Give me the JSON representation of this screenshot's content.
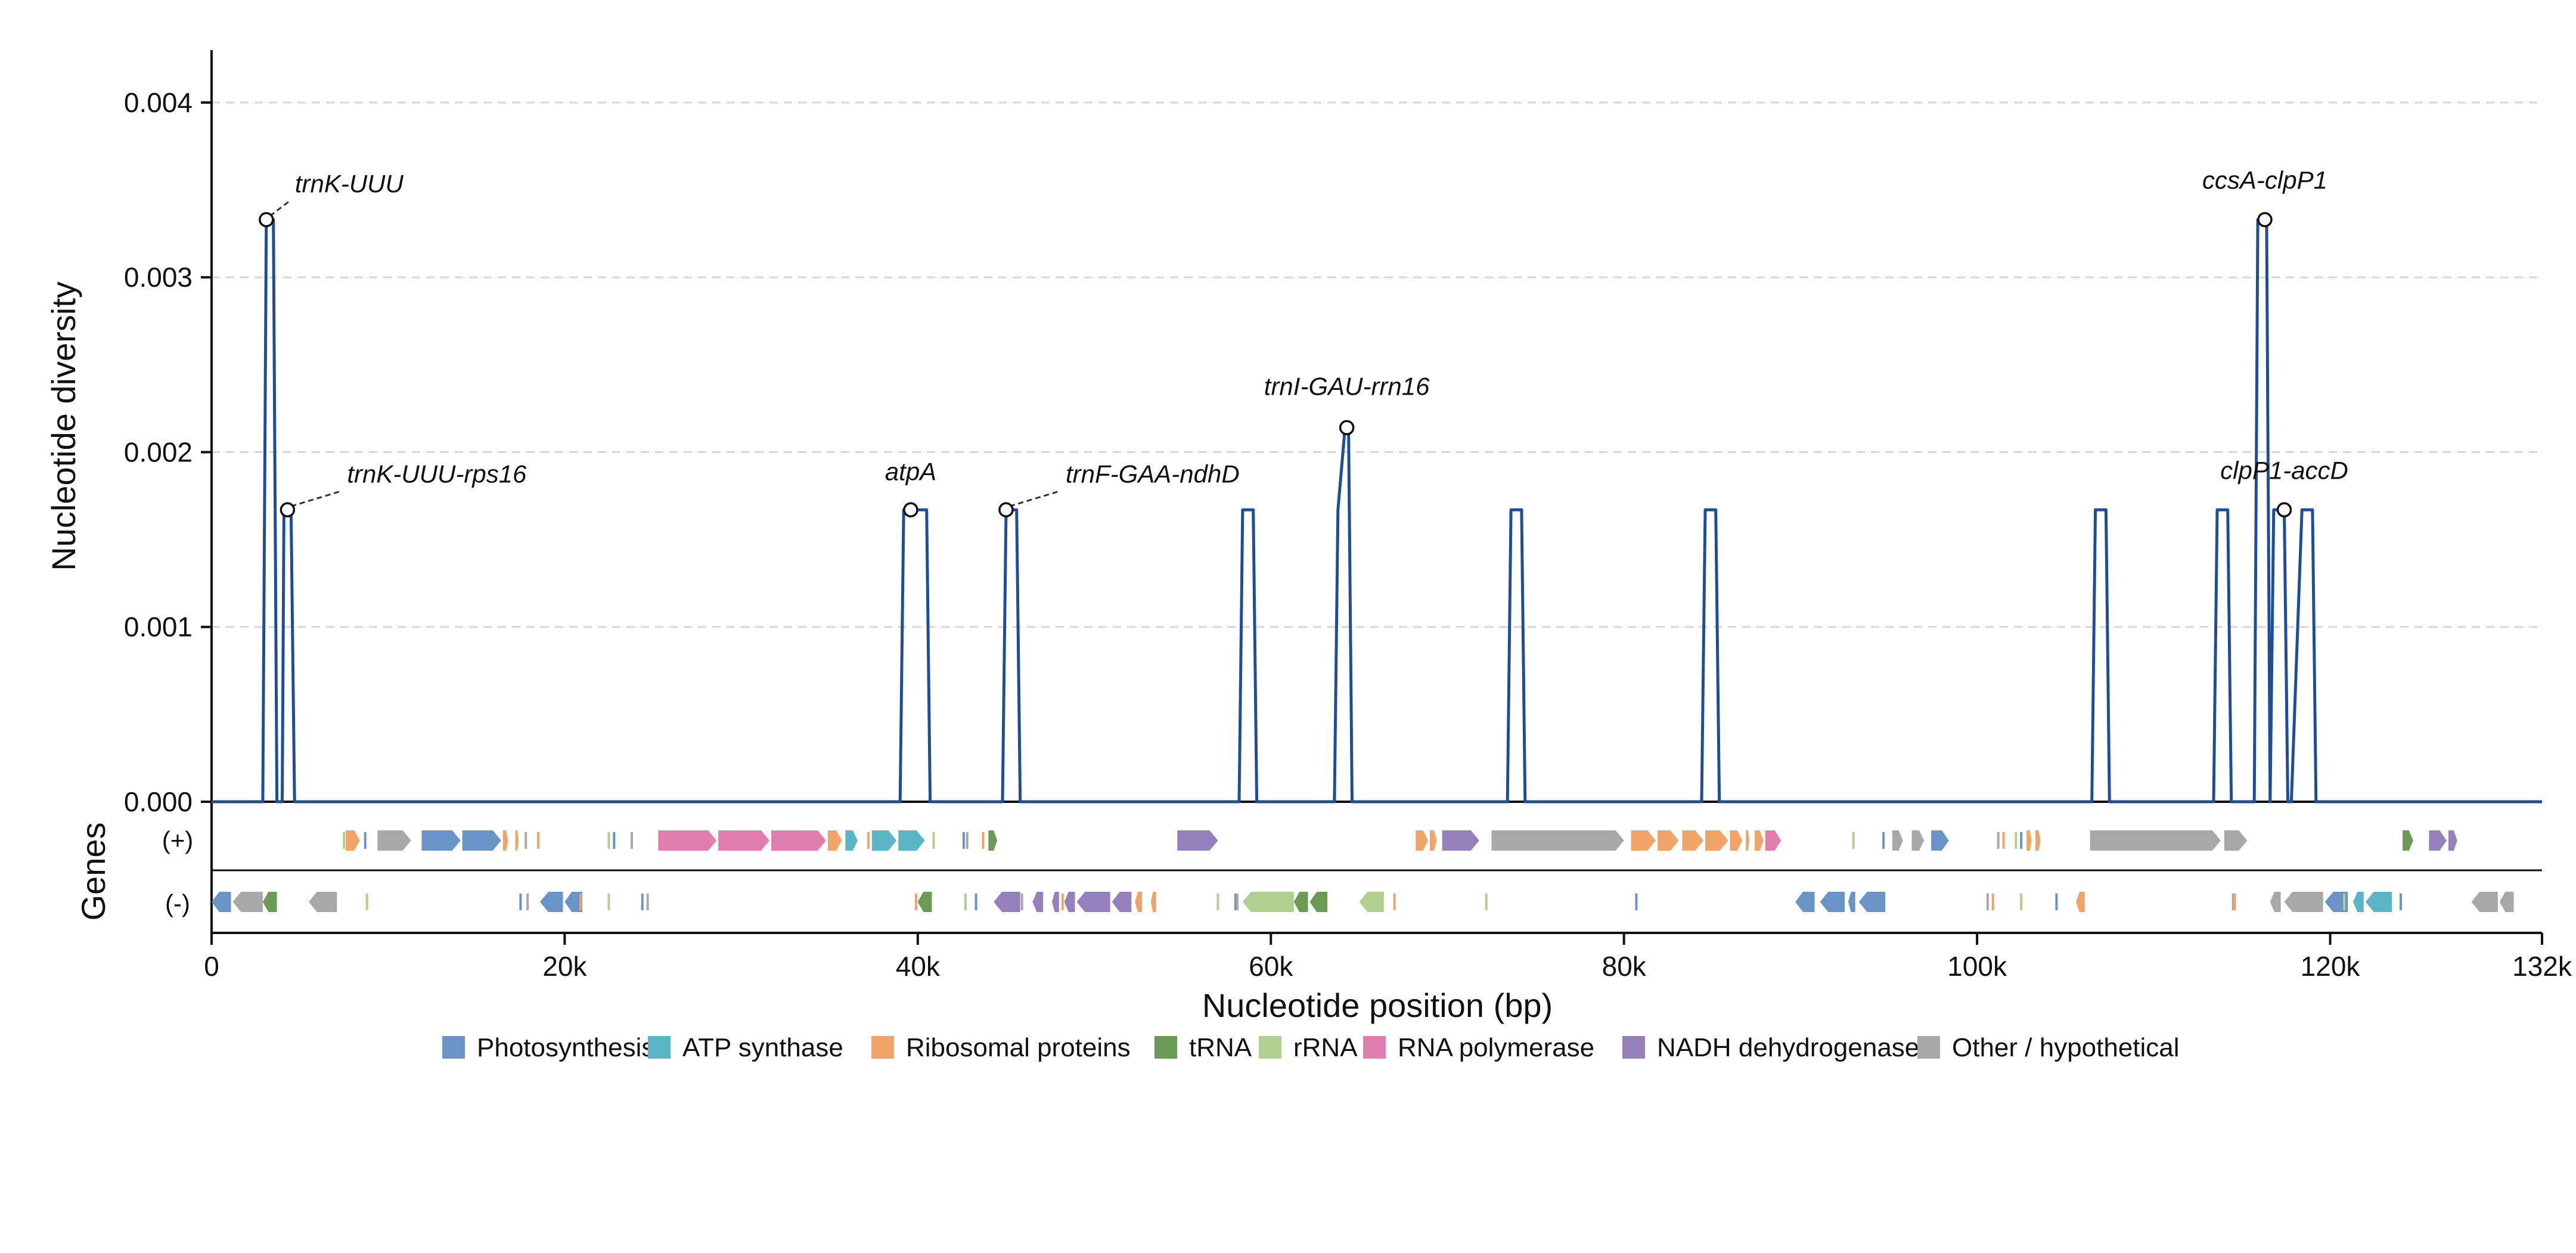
{
  "chart_data": {
    "type": "line",
    "ylabel": "Nucleotide diversity",
    "xlabel": "Nucleotide position (bp)",
    "xlim": [
      0,
      132000
    ],
    "ylim": [
      0,
      0.0043
    ],
    "y_ticks": [
      "0.000",
      "0.001",
      "0.002",
      "0.003",
      "0.004"
    ],
    "y_tick_values": [
      0,
      0.001,
      0.002,
      0.003,
      0.004
    ],
    "x_ticks": [
      "0",
      "20k",
      "40k",
      "60k",
      "80k",
      "100k",
      "120k",
      "132k"
    ],
    "x_tick_values": [
      0,
      20000,
      40000,
      60000,
      80000,
      100000,
      120000,
      132000
    ],
    "grid": "horizontal dashed",
    "series": [
      {
        "color": "#1f4e96",
        "x": [
          0,
          2900,
          3100,
          3300,
          3500,
          3700,
          3900,
          4000,
          4100,
          4300,
          4500,
          4700,
          4900,
          5000,
          5100,
          39000,
          39200,
          39400,
          40300,
          40500,
          40700,
          44800,
          45000,
          45400,
          45600,
          45800,
          58200,
          58400,
          58800,
          59000,
          59200,
          63600,
          63800,
          64200,
          64400,
          64600,
          73400,
          73600,
          74000,
          74200,
          74400,
          84400,
          84600,
          85000,
          85200,
          85400,
          106500,
          106700,
          107100,
          107300,
          107500,
          113400,
          113600,
          114000,
          114200,
          114400,
          115700,
          115900,
          116200,
          116400,
          116600,
          116800,
          117000,
          117400,
          117600,
          117800,
          118400,
          118600,
          119000,
          119200,
          119400,
          132000
        ],
        "y": [
          0,
          0,
          0.00333,
          0.00333,
          0.00333,
          0,
          0,
          0,
          0.00167,
          0.00167,
          0.00167,
          0,
          0,
          0,
          0,
          0,
          0.00167,
          0.00167,
          0.00167,
          0.00167,
          0,
          0,
          0.00167,
          0.00167,
          0.00167,
          0,
          0,
          0.00167,
          0.00167,
          0.00167,
          0,
          0,
          0.00167,
          0.00214,
          0.00214,
          0,
          0,
          0.00167,
          0.00167,
          0.00167,
          0,
          0,
          0.00167,
          0.00167,
          0.00167,
          0,
          0,
          0.00167,
          0.00167,
          0.00167,
          0,
          0,
          0.00167,
          0.00167,
          0.00167,
          0,
          0,
          0.00333,
          0.00333,
          0.00333,
          0,
          0.00167,
          0.00167,
          0.00167,
          0,
          0,
          0.00167,
          0.00167,
          0.00167,
          0,
          0,
          0
        ]
      }
    ],
    "peaks": [
      {
        "label": "trnK-UUU",
        "x": 3100,
        "y": 0.00333,
        "leader": true
      },
      {
        "label": "trnK-UUU-rps16",
        "x": 4300,
        "y": 0.00167,
        "leader": true
      },
      {
        "label": "atpA",
        "x": 39600,
        "y": 0.00167,
        "leader": false
      },
      {
        "label": "trnF-GAA-ndhD",
        "x": 45000,
        "y": 0.00167,
        "leader": true
      },
      {
        "label": "trnI-GAU-rrn16",
        "x": 64300,
        "y": 0.00214,
        "leader": false
      },
      {
        "label": "ccsA-clpP1",
        "x": 116300,
        "y": 0.00333,
        "leader": false
      },
      {
        "label": "clpP1-accD",
        "x": 117400,
        "y": 0.00167,
        "leader": false
      }
    ],
    "gene_track": {
      "title": "Genes",
      "strand_labels": [
        "(+)",
        "(-)"
      ],
      "plus": [
        {
          "start": 7600,
          "end": 8400,
          "cat": "ribosomal"
        },
        {
          "start": 9400,
          "end": 11300,
          "cat": "other"
        },
        {
          "start": 11900,
          "end": 14100,
          "cat": "photo"
        },
        {
          "start": 14200,
          "end": 16400,
          "cat": "photo"
        },
        {
          "start": 16500,
          "end": 16800,
          "cat": "ribosomal"
        },
        {
          "start": 17200,
          "end": 17400,
          "cat": "ribosomal"
        },
        {
          "start": 25300,
          "end": 28600,
          "cat": "rnapol"
        },
        {
          "start": 28700,
          "end": 31600,
          "cat": "rnapol"
        },
        {
          "start": 31700,
          "end": 34800,
          "cat": "rnapol"
        },
        {
          "start": 34900,
          "end": 35700,
          "cat": "ribosomal"
        },
        {
          "start": 35900,
          "end": 36600,
          "cat": "atp"
        },
        {
          "start": 37400,
          "end": 38800,
          "cat": "atp"
        },
        {
          "start": 38900,
          "end": 40400,
          "cat": "atp"
        },
        {
          "start": 44000,
          "end": 44500,
          "cat": "trna"
        },
        {
          "start": 54700,
          "end": 57000,
          "cat": "ndh"
        },
        {
          "start": 68200,
          "end": 68900,
          "cat": "ribosomal"
        },
        {
          "start": 69000,
          "end": 69400,
          "cat": "ribosomal"
        },
        {
          "start": 69700,
          "end": 71800,
          "cat": "ndh"
        },
        {
          "start": 72500,
          "end": 80000,
          "cat": "other"
        },
        {
          "start": 80400,
          "end": 81800,
          "cat": "ribosomal"
        },
        {
          "start": 81900,
          "end": 83100,
          "cat": "ribosomal"
        },
        {
          "start": 83300,
          "end": 84500,
          "cat": "ribosomal"
        },
        {
          "start": 84600,
          "end": 85900,
          "cat": "ribosomal"
        },
        {
          "start": 86000,
          "end": 86700,
          "cat": "ribosomal"
        },
        {
          "start": 86900,
          "end": 87100,
          "cat": "ribosomal"
        },
        {
          "start": 87400,
          "end": 87900,
          "cat": "ribosomal"
        },
        {
          "start": 88000,
          "end": 88900,
          "cat": "rnapol"
        },
        {
          "start": 95200,
          "end": 95800,
          "cat": "other"
        },
        {
          "start": 96300,
          "end": 97000,
          "cat": "other"
        },
        {
          "start": 97400,
          "end": 98400,
          "cat": "photo"
        },
        {
          "start": 102800,
          "end": 103100,
          "cat": "ribosomal"
        },
        {
          "start": 103300,
          "end": 103600,
          "cat": "ribosomal"
        },
        {
          "start": 106400,
          "end": 113800,
          "cat": "other"
        },
        {
          "start": 114000,
          "end": 115300,
          "cat": "other"
        },
        {
          "start": 124100,
          "end": 124700,
          "cat": "trna"
        },
        {
          "start": 125600,
          "end": 126600,
          "cat": "ndh"
        },
        {
          "start": 126700,
          "end": 127200,
          "cat": "ndh"
        }
      ],
      "minus": [
        {
          "start": 0,
          "end": 1100,
          "cat": "photo"
        },
        {
          "start": 1200,
          "end": 2900,
          "cat": "other"
        },
        {
          "start": 2900,
          "end": 3700,
          "cat": "trna"
        },
        {
          "start": 5500,
          "end": 7100,
          "cat": "other"
        },
        {
          "start": 18600,
          "end": 19900,
          "cat": "photo"
        },
        {
          "start": 20000,
          "end": 21000,
          "cat": "photo"
        },
        {
          "start": 40000,
          "end": 40800,
          "cat": "trna"
        },
        {
          "start": 44300,
          "end": 45800,
          "cat": "ndh"
        },
        {
          "start": 46500,
          "end": 47100,
          "cat": "ndh"
        },
        {
          "start": 47600,
          "end": 48000,
          "cat": "ndh"
        },
        {
          "start": 48300,
          "end": 48900,
          "cat": "ndh"
        },
        {
          "start": 49000,
          "end": 50900,
          "cat": "ndh"
        },
        {
          "start": 51000,
          "end": 52100,
          "cat": "ndh"
        },
        {
          "start": 52300,
          "end": 52700,
          "cat": "ribosomal"
        },
        {
          "start": 53200,
          "end": 53500,
          "cat": "ribosomal"
        },
        {
          "start": 58400,
          "end": 61300,
          "cat": "rrna"
        },
        {
          "start": 61300,
          "end": 62100,
          "cat": "trna"
        },
        {
          "start": 62200,
          "end": 63200,
          "cat": "trna"
        },
        {
          "start": 65000,
          "end": 66400,
          "cat": "rrna"
        },
        {
          "start": 89700,
          "end": 90800,
          "cat": "photo"
        },
        {
          "start": 91100,
          "end": 92500,
          "cat": "photo"
        },
        {
          "start": 92700,
          "end": 93100,
          "cat": "photo"
        },
        {
          "start": 93300,
          "end": 94800,
          "cat": "photo"
        },
        {
          "start": 105600,
          "end": 106100,
          "cat": "ribosomal"
        },
        {
          "start": 116600,
          "end": 117200,
          "cat": "other"
        },
        {
          "start": 117400,
          "end": 119600,
          "cat": "other"
        },
        {
          "start": 119700,
          "end": 121000,
          "cat": "photo"
        },
        {
          "start": 121300,
          "end": 121900,
          "cat": "atp"
        },
        {
          "start": 122000,
          "end": 123500,
          "cat": "atp"
        },
        {
          "start": 128000,
          "end": 129500,
          "cat": "other"
        },
        {
          "start": 129600,
          "end": 130400,
          "cat": "other"
        }
      ],
      "thin_plus": [
        7500,
        8700,
        17800,
        18500,
        22500,
        22800,
        23800,
        37200,
        40900,
        42600,
        42800,
        43700,
        93000,
        94700,
        101200,
        101500,
        102200,
        102500
      ],
      "thin_minus": [
        8800,
        17500,
        17900,
        20900,
        22500,
        24400,
        24700,
        39900,
        42700,
        43300,
        45900,
        48200,
        57000,
        58000,
        58100,
        67000,
        72200,
        80700,
        100600,
        100900,
        102500,
        104500,
        114500,
        114600,
        120800,
        124000
      ]
    },
    "legend": {
      "placement": "bottom",
      "entries": [
        {
          "label": "Photosynthesis",
          "color": "#6a93c6"
        },
        {
          "label": "ATP synthase",
          "color": "#5bb5c4"
        },
        {
          "label": "Ribosomal proteins",
          "color": "#f0a469"
        },
        {
          "label": "tRNA",
          "color": "#6a9a55"
        },
        {
          "label": "rRNA",
          "color": "#b1d08f"
        },
        {
          "label": "RNA polymerase",
          "color": "#e07fae"
        },
        {
          "label": "NADH dehydrogenase",
          "color": "#9580bb"
        },
        {
          "label": "Other / hypothetical",
          "color": "#a8a8a8"
        }
      ]
    },
    "category_colors": {
      "photo": "#6a93c6",
      "atp": "#5bb5c4",
      "ribosomal": "#f0a469",
      "trna": "#6a9a55",
      "rrna": "#b1d08f",
      "rnapol": "#e07fae",
      "ndh": "#9580bb",
      "other": "#a8a8a8"
    }
  }
}
